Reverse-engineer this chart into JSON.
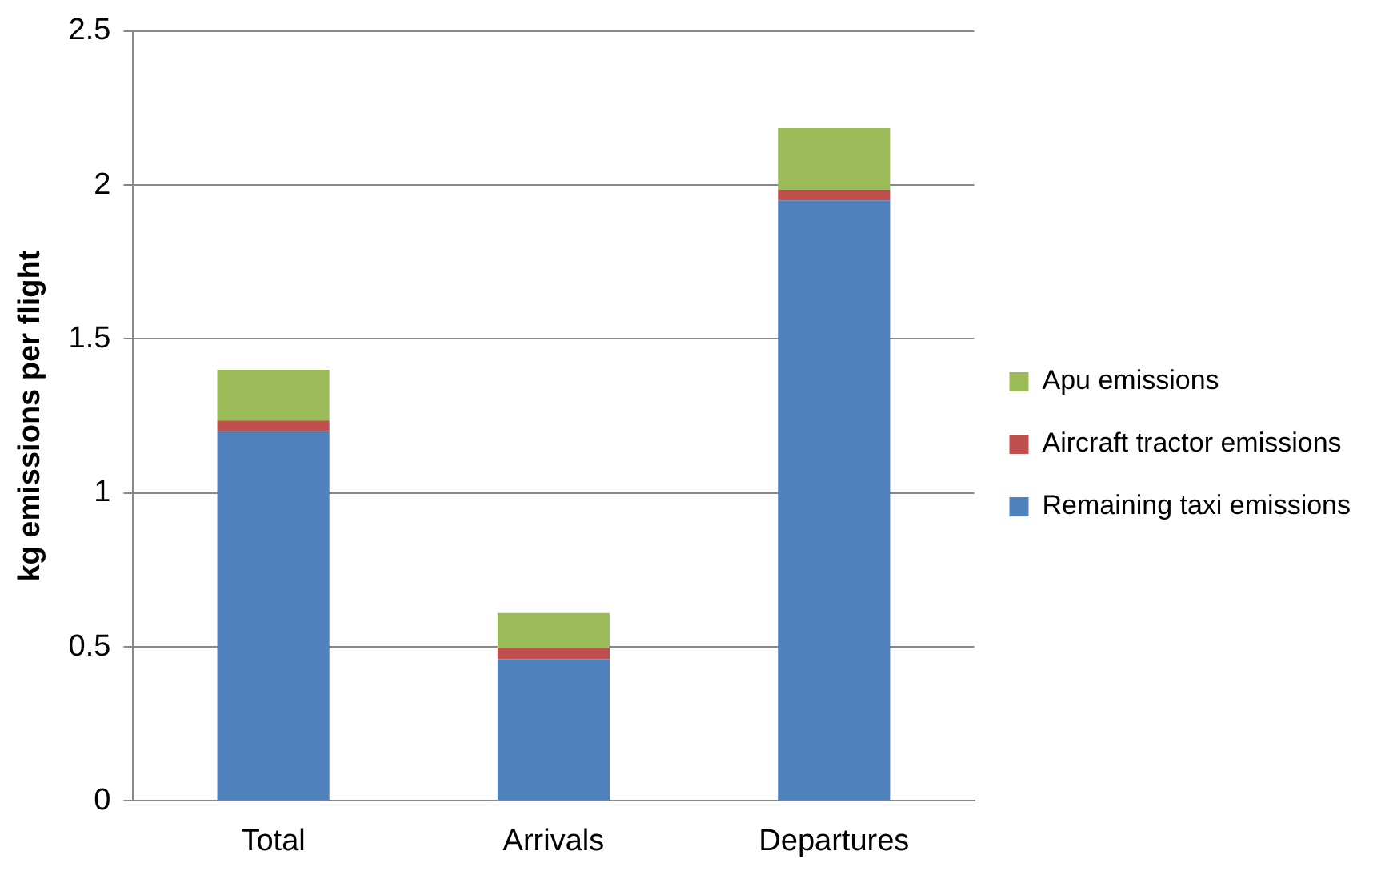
{
  "chart_data": {
    "type": "bar",
    "ylabel": "kg emissions per flight",
    "categories": [
      "Total",
      "Arrivals",
      "Departures"
    ],
    "stacked": true,
    "series": [
      {
        "name": "Remaining taxi emissions",
        "color": "#4f81bd",
        "values": [
          1.2,
          0.46,
          1.95
        ]
      },
      {
        "name": "Aircraft tractor emissions",
        "color": "#c0504d",
        "values": [
          0.035,
          0.035,
          0.035
        ]
      },
      {
        "name": "Apu emissions",
        "color": "#9bbb59",
        "values": [
          0.165,
          0.115,
          0.2
        ]
      }
    ],
    "ylim": [
      0,
      2.5
    ],
    "yticks": [
      0,
      0.5,
      1,
      1.5,
      2,
      2.5
    ],
    "grid": "y",
    "legend": "right"
  }
}
